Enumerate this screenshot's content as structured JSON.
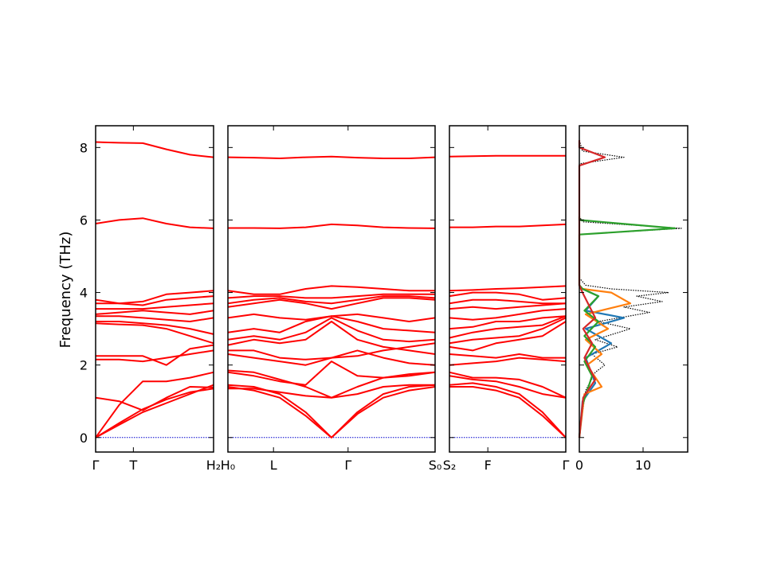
{
  "chart_data": [
    {
      "type": "line",
      "panel": "band-structure",
      "ylabel": "Frequency (THz)",
      "ylim": [
        -0.4,
        8.6
      ],
      "yticks": [
        0,
        2,
        4,
        6,
        8
      ],
      "grid": false,
      "line_color": "#ff0000",
      "zero_line_color": "#0000cc",
      "segments": [
        {
          "start_label": "Γ",
          "end_label": "H₂",
          "point_label": "T",
          "x": [
            0,
            0.2,
            0.4,
            0.6,
            0.8,
            1.0
          ],
          "bands": [
            [
              0.0,
              0.35,
              0.7,
              0.95,
              1.2,
              1.45
            ],
            [
              0.0,
              0.4,
              0.78,
              1.05,
              1.25,
              1.35
            ],
            [
              0.0,
              0.9,
              1.55,
              1.55,
              1.65,
              1.8
            ],
            [
              1.1,
              1.0,
              0.75,
              1.1,
              1.4,
              1.38
            ],
            [
              2.15,
              2.15,
              2.1,
              2.2,
              2.3,
              2.4
            ],
            [
              2.25,
              2.25,
              2.25,
              2.0,
              2.45,
              2.55
            ],
            [
              3.15,
              3.12,
              3.1,
              3.0,
              2.8,
              2.6
            ],
            [
              3.2,
              3.2,
              3.15,
              3.1,
              3.0,
              2.85
            ],
            [
              3.35,
              3.35,
              3.3,
              3.25,
              3.2,
              3.3
            ],
            [
              3.4,
              3.45,
              3.5,
              3.45,
              3.4,
              3.5
            ],
            [
              3.55,
              3.55,
              3.55,
              3.6,
              3.65,
              3.7
            ],
            [
              3.7,
              3.7,
              3.65,
              3.8,
              3.85,
              3.9
            ],
            [
              3.8,
              3.7,
              3.75,
              3.95,
              4.0,
              4.05
            ],
            [
              5.9,
              6.0,
              6.05,
              5.9,
              5.8,
              5.77
            ],
            [
              8.15,
              8.13,
              8.12,
              7.95,
              7.8,
              7.73
            ]
          ]
        },
        {
          "start_label": "H₀",
          "end_label": "S₀",
          "point_label": "L",
          "mid_label": "Γ",
          "x": [
            0,
            0.125,
            0.25,
            0.375,
            0.5,
            0.625,
            0.75,
            0.875,
            1.0
          ],
          "bands": [
            [
              1.45,
              1.4,
              1.2,
              0.7,
              0.0,
              0.65,
              1.1,
              1.3,
              1.4
            ],
            [
              1.4,
              1.3,
              1.1,
              0.6,
              0.0,
              0.7,
              1.2,
              1.4,
              1.45
            ],
            [
              1.35,
              1.35,
              1.25,
              1.15,
              1.1,
              1.2,
              1.4,
              1.45,
              1.45
            ],
            [
              1.85,
              1.8,
              1.6,
              1.4,
              1.1,
              1.4,
              1.65,
              1.75,
              1.8
            ],
            [
              1.8,
              1.7,
              1.55,
              1.45,
              2.1,
              1.7,
              1.65,
              1.7,
              1.8
            ],
            [
              2.3,
              2.2,
              2.1,
              2.0,
              2.2,
              2.4,
              2.2,
              2.05,
              2.0
            ],
            [
              2.4,
              2.4,
              2.2,
              2.15,
              2.2,
              2.25,
              2.4,
              2.5,
              2.6
            ],
            [
              2.55,
              2.7,
              2.6,
              2.7,
              3.2,
              2.7,
              2.5,
              2.4,
              2.3
            ],
            [
              2.7,
              2.8,
              2.7,
              2.9,
              3.3,
              2.95,
              2.7,
              2.65,
              2.7
            ],
            [
              2.9,
              3.0,
              2.9,
              3.2,
              3.35,
              3.2,
              3.0,
              2.95,
              2.9
            ],
            [
              3.3,
              3.4,
              3.3,
              3.25,
              3.35,
              3.4,
              3.3,
              3.2,
              3.3
            ],
            [
              3.6,
              3.7,
              3.8,
              3.7,
              3.55,
              3.7,
              3.85,
              3.85,
              3.8
            ],
            [
              3.7,
              3.8,
              3.85,
              3.75,
              3.7,
              3.8,
              3.9,
              3.9,
              3.85
            ],
            [
              3.85,
              3.9,
              3.9,
              3.85,
              3.85,
              3.9,
              3.95,
              3.95,
              3.95
            ],
            [
              4.05,
              3.95,
              3.95,
              4.1,
              4.18,
              4.15,
              4.1,
              4.05,
              4.05
            ],
            [
              5.78,
              5.78,
              5.77,
              5.8,
              5.88,
              5.85,
              5.8,
              5.78,
              5.77
            ],
            [
              7.73,
              7.72,
              7.7,
              7.73,
              7.75,
              7.72,
              7.7,
              7.7,
              7.73
            ]
          ]
        },
        {
          "start_label": "S₂",
          "end_label": "Γ",
          "point_label": "F",
          "x": [
            0,
            0.2,
            0.4,
            0.6,
            0.8,
            1.0
          ],
          "bands": [
            [
              1.4,
              1.4,
              1.3,
              1.1,
              0.6,
              0.0
            ],
            [
              1.45,
              1.5,
              1.4,
              1.2,
              0.7,
              0.0
            ],
            [
              1.7,
              1.6,
              1.55,
              1.4,
              1.2,
              1.1
            ],
            [
              1.8,
              1.65,
              1.65,
              1.6,
              1.4,
              1.1
            ],
            [
              2.0,
              2.05,
              2.1,
              2.2,
              2.15,
              2.1
            ],
            [
              2.3,
              2.25,
              2.2,
              2.3,
              2.2,
              2.2
            ],
            [
              2.5,
              2.4,
              2.6,
              2.7,
              2.8,
              3.2
            ],
            [
              2.6,
              2.7,
              2.75,
              2.8,
              3.0,
              3.3
            ],
            [
              2.75,
              2.9,
              3.0,
              3.05,
              3.1,
              3.35
            ],
            [
              3.0,
              3.05,
              3.2,
              3.2,
              3.3,
              3.35
            ],
            [
              3.3,
              3.25,
              3.3,
              3.4,
              3.5,
              3.55
            ],
            [
              3.55,
              3.6,
              3.55,
              3.6,
              3.65,
              3.7
            ],
            [
              3.7,
              3.8,
              3.8,
              3.75,
              3.7,
              3.7
            ],
            [
              3.9,
              4.0,
              4.0,
              3.95,
              3.8,
              3.85
            ],
            [
              4.05,
              4.07,
              4.1,
              4.12,
              4.15,
              4.18
            ],
            [
              5.8,
              5.8,
              5.82,
              5.82,
              5.85,
              5.88
            ],
            [
              7.75,
              7.76,
              7.77,
              7.77,
              7.77,
              7.77
            ]
          ]
        }
      ]
    },
    {
      "type": "line",
      "panel": "dos",
      "xlim": [
        0,
        17
      ],
      "xticks": [
        0,
        10
      ],
      "ylim": [
        -0.4,
        8.6
      ],
      "series": [
        {
          "color": "#000000",
          "style": "dotted",
          "x": [
            0,
            0.5,
            1.0,
            2.5,
            4.0,
            2.0,
            6.0,
            2.5,
            8.0,
            3.0,
            11.0,
            7.0,
            13.0,
            9.0,
            14.0,
            5.0,
            1.0,
            0,
            0,
            16.0,
            0.5,
            0,
            0,
            7.0,
            0.5,
            0
          ],
          "y": [
            0,
            0.7,
            1.3,
            1.8,
            2.0,
            2.3,
            2.5,
            2.7,
            3.0,
            3.2,
            3.45,
            3.6,
            3.75,
            3.9,
            4.0,
            4.1,
            4.2,
            4.4,
            5.6,
            5.77,
            5.95,
            6.1,
            7.55,
            7.73,
            7.9,
            8.2
          ]
        },
        {
          "color": "#1f77b4",
          "style": "solid",
          "x": [
            0,
            0.5,
            2.5,
            1.0,
            5.0,
            1.0,
            7.0,
            1.0,
            3.0,
            0.5,
            0
          ],
          "y": [
            0,
            1.0,
            1.5,
            2.2,
            2.6,
            3.0,
            3.3,
            3.5,
            3.9,
            4.1,
            4.2
          ]
        },
        {
          "color": "#ff7f0e",
          "style": "solid",
          "x": [
            0,
            0.8,
            3.5,
            1.2,
            3.5,
            1.0,
            4.5,
            1.0,
            8.0,
            5.0,
            0.5,
            0
          ],
          "y": [
            0,
            1.2,
            1.4,
            2.0,
            2.3,
            2.7,
            3.0,
            3.4,
            3.7,
            4.0,
            4.1,
            4.2
          ]
        },
        {
          "color": "#2ca02c",
          "style": "solid",
          "x": [
            0,
            0.5,
            2.0,
            0.8,
            2.5,
            0.8,
            3.0,
            0.8,
            3.0,
            0.5,
            0,
            0,
            15.0,
            0,
            0
          ],
          "y": [
            0,
            0.9,
            1.7,
            2.1,
            2.5,
            2.8,
            3.2,
            3.5,
            3.9,
            4.1,
            4.2,
            5.6,
            5.77,
            6.0,
            6.1
          ]
        },
        {
          "color": "#d62728",
          "style": "solid",
          "x": [
            0,
            0.6,
            2.5,
            0.8,
            2.0,
            0.6,
            2.5,
            0.5,
            0,
            0,
            4.0,
            0,
            0
          ],
          "y": [
            0,
            1.1,
            1.6,
            2.2,
            2.6,
            3.0,
            3.3,
            4.0,
            4.2,
            7.5,
            7.73,
            8.0,
            8.2
          ]
        }
      ]
    }
  ]
}
